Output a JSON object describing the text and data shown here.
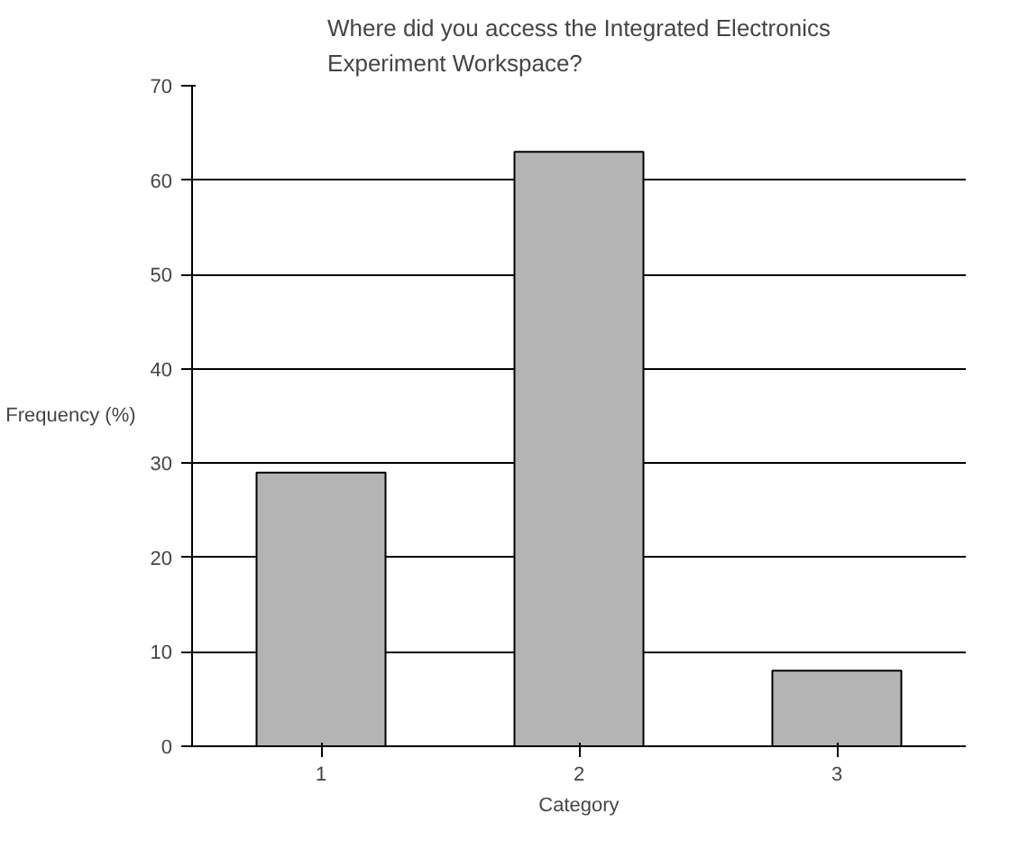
{
  "chart_data": {
    "type": "bar",
    "title": "Where did you access the Integrated Electronics Experiment Workspace?",
    "xlabel": "Category",
    "ylabel": "Frequency (%)",
    "categories": [
      "1",
      "2",
      "3"
    ],
    "values": [
      29,
      63,
      8
    ],
    "color": "#b4b4b4",
    "ylim": [
      0,
      70
    ],
    "yticks": [
      0,
      10,
      20,
      30,
      40,
      50,
      60,
      70
    ],
    "grid": "y"
  }
}
